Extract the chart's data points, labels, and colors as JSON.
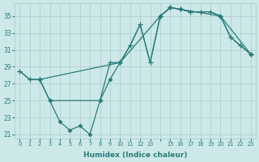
{
  "xlabel": "Humidex (Indice chaleur)",
  "bg_color": "#cce8e8",
  "grid_color": "#aacccc",
  "line_color": "#2a7a7a",
  "xtick_labels": [
    "0",
    "1",
    "2",
    "3",
    "4",
    "5",
    "6",
    "7",
    "8",
    "9",
    "10",
    "11",
    "12",
    "13",
    "",
    "15",
    "16",
    "17",
    "18",
    "19",
    "20",
    "21",
    "22",
    "23"
  ],
  "line1_x": [
    0,
    1,
    2,
    10,
    11,
    12,
    13,
    14,
    15,
    16,
    17,
    18,
    19,
    20,
    21,
    22,
    23
  ],
  "line1_y": [
    28.5,
    27.5,
    27.5,
    29.5,
    31.5,
    34.0,
    29.5,
    35.0,
    36.0,
    35.8,
    35.5,
    35.5,
    35.5,
    35.0,
    32.5,
    31.5,
    30.5
  ],
  "line2_x": [
    0,
    1,
    2,
    3,
    8,
    9,
    10,
    11,
    12,
    13,
    14,
    15,
    16,
    17,
    18,
    19,
    20,
    21,
    22,
    23
  ],
  "line2_y": [
    28.5,
    27.5,
    27.5,
    25.0,
    25.0,
    29.5,
    29.5,
    31.5,
    34.0,
    29.5,
    35.0,
    36.0,
    35.8,
    35.5,
    35.5,
    35.5,
    35.0,
    32.5,
    31.5,
    30.5
  ],
  "line3_x": [
    2,
    3,
    4,
    5,
    6,
    7,
    8,
    9,
    10,
    14,
    15,
    16,
    20,
    23
  ],
  "line3_y": [
    27.5,
    25.0,
    22.5,
    21.5,
    22.0,
    21.0,
    25.0,
    27.5,
    29.5,
    35.0,
    36.0,
    35.8,
    35.0,
    30.5
  ],
  "ylim": [
    20.5,
    36.5
  ],
  "xlim": [
    -0.5,
    23.5
  ],
  "yticks": [
    21,
    23,
    25,
    27,
    29,
    31,
    33,
    35
  ]
}
